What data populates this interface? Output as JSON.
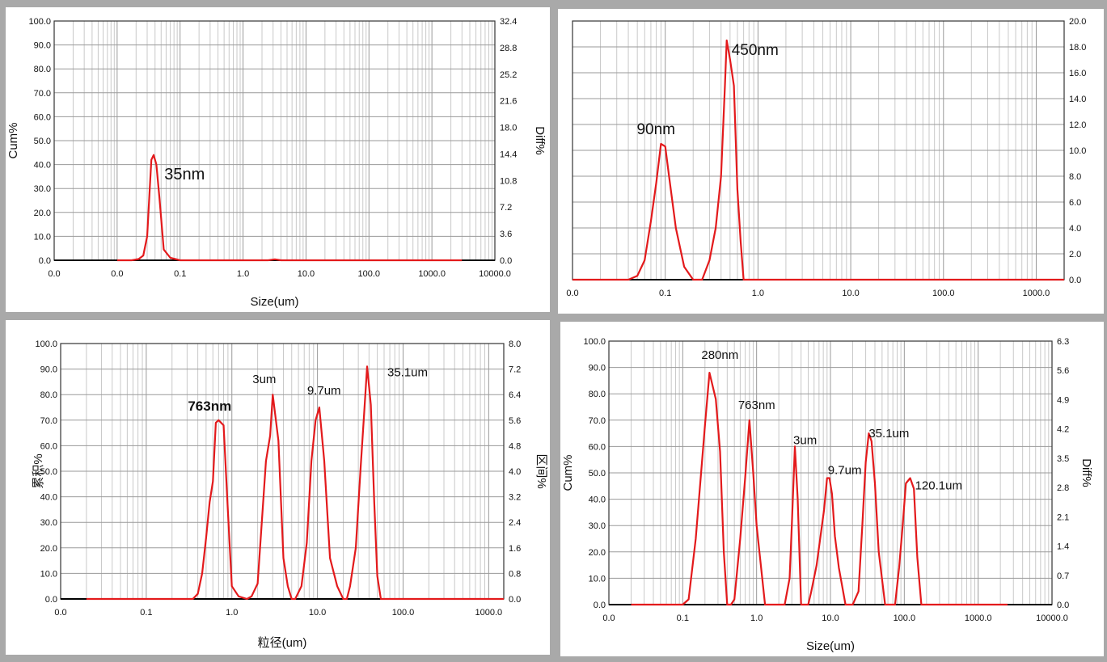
{
  "chart_data": [
    {
      "type": "line",
      "title": "",
      "xlabel": "Size(um)",
      "ylabel": "Cum%",
      "y2label": "Diff%",
      "x_scale": "log",
      "xlim": [
        0.001,
        10000
      ],
      "x_ticks": [
        0.001,
        0.01,
        0.1,
        1,
        10,
        100,
        1000,
        10000
      ],
      "x_tick_labels": [
        "0.0",
        "0.0",
        "0.1",
        "1.0",
        "10.0",
        "100.0",
        "1000.0",
        "10000.0"
      ],
      "ylim": [
        0,
        100
      ],
      "y_tick_labels": [
        "0.0",
        "10.0",
        "20.0",
        "30.0",
        "40.0",
        "50.0",
        "60.0",
        "70.0",
        "80.0",
        "90.0",
        "100.0"
      ],
      "y2lim": [
        0,
        36
      ],
      "y2_tick_labels": [
        "0.0",
        "3.6",
        "7.2",
        "10.8",
        "14.4",
        "18.0",
        "21.6",
        "25.2",
        "28.8",
        "32.4"
      ],
      "grid": true,
      "line_color": "#e31a1c",
      "series": [
        {
          "x": [
            0.01,
            0.017,
            0.022,
            0.026,
            0.03,
            0.033,
            0.035,
            0.038,
            0.042,
            0.047,
            0.055,
            0.07,
            0.1,
            1,
            2.5,
            3.2,
            4,
            10,
            100,
            1000,
            3000
          ],
          "y": [
            0,
            0,
            0.5,
            2,
            10,
            30,
            42,
            44,
            40,
            26,
            4.5,
            1,
            0,
            0,
            0,
            0.4,
            0,
            0,
            0,
            0,
            0
          ]
        }
      ],
      "annotations": [
        {
          "text": "35nm",
          "x": 0.035,
          "y": 44
        }
      ]
    },
    {
      "type": "line",
      "title": "",
      "xlabel": "",
      "ylabel": "",
      "y2label": "",
      "x_scale": "log",
      "xlim": [
        0.01,
        2000
      ],
      "x_ticks": [
        0.01,
        0.1,
        1,
        10,
        100,
        1000
      ],
      "x_tick_labels": [
        "0.0",
        "0.1",
        "1.0",
        "10.0",
        "100.0",
        "1000.0"
      ],
      "ylim": [
        0,
        20
      ],
      "y_tick_labels": [],
      "y2lim": [
        0,
        20
      ],
      "y2_tick_labels": [
        "0.0",
        "2.0",
        "4.0",
        "6.0",
        "8.0",
        "10.0",
        "12.0",
        "14.0",
        "16.0",
        "18.0",
        "20.0"
      ],
      "grid": true,
      "line_color": "#e31a1c",
      "series": [
        {
          "x": [
            0.01,
            0.04,
            0.05,
            0.06,
            0.07,
            0.08,
            0.09,
            0.1,
            0.11,
            0.13,
            0.16,
            0.2,
            0.25,
            0.3,
            0.35,
            0.4,
            0.44,
            0.46,
            0.5,
            0.55,
            0.6,
            0.65,
            0.7,
            10,
            2000
          ],
          "y": [
            0,
            0,
            0.3,
            1.5,
            4.5,
            7.5,
            10.5,
            10.3,
            8,
            4,
            1,
            0,
            0,
            1.5,
            4,
            8,
            15,
            18.5,
            17,
            15,
            7,
            3,
            0,
            0,
            0
          ]
        }
      ],
      "annotations": [
        {
          "text": "450nm",
          "x": 0.46,
          "y": 18.5
        },
        {
          "text": "90nm",
          "x": 0.09,
          "y": 10.5
        }
      ]
    },
    {
      "type": "line",
      "title": "",
      "xlabel": "粒径(um)",
      "ylabel": "累积%",
      "y2label": "区间%",
      "x_scale": "log",
      "xlim": [
        0.01,
        1500
      ],
      "x_ticks": [
        0.01,
        0.1,
        1,
        10,
        100,
        1000
      ],
      "x_tick_labels": [
        "0.0",
        "0.1",
        "1.0",
        "10.0",
        "100.0",
        "1000.0"
      ],
      "ylim": [
        0,
        100
      ],
      "y_tick_labels": [
        "0.0",
        "10.0",
        "20.0",
        "30.0",
        "40.0",
        "50.0",
        "60.0",
        "70.0",
        "80.0",
        "90.0",
        "100.0"
      ],
      "y2lim": [
        0,
        8
      ],
      "y2_tick_labels": [
        "0.0",
        "0.8",
        "1.6",
        "2.4",
        "3.2",
        "4.0",
        "4.8",
        "5.6",
        "6.4",
        "7.2",
        "8.0"
      ],
      "grid": true,
      "line_color": "#e31a1c",
      "series": [
        {
          "x": [
            0.02,
            0.35,
            0.4,
            0.45,
            0.5,
            0.55,
            0.6,
            0.65,
            0.7,
            0.8,
            0.9,
            1.0,
            1.2,
            1.5,
            1.7,
            2.0,
            2.5,
            2.8,
            3.0,
            3.5,
            4.0,
            4.5,
            5.0,
            5.5,
            6.5,
            7.5,
            8.5,
            9.5,
            10.5,
            12,
            14,
            17,
            20,
            22,
            24,
            28,
            32,
            35,
            38,
            42,
            46,
            50,
            55,
            60,
            1500
          ],
          "y": [
            0,
            0,
            2,
            10,
            24,
            38,
            46,
            69,
            70,
            68,
            34,
            5,
            1,
            0,
            1,
            6,
            54,
            64,
            80,
            62,
            16,
            5,
            0,
            0,
            5,
            22,
            54,
            70,
            75,
            54,
            16,
            5,
            0,
            0,
            5,
            20,
            52,
            72,
            91,
            76,
            38,
            9,
            0,
            0,
            0
          ]
        }
      ],
      "annotations": [
        {
          "text": "763nm",
          "x": 0.7,
          "y": 70
        },
        {
          "text": "3um",
          "x": 3.0,
          "y": 80
        },
        {
          "text": "9.7um",
          "x": 10.5,
          "y": 75
        },
        {
          "text": "35.1um",
          "x": 38,
          "y": 91
        }
      ]
    },
    {
      "type": "line",
      "title": "",
      "xlabel": "Size(um)",
      "ylabel": "Cum%",
      "y2label": "Diff%",
      "x_scale": "log",
      "xlim": [
        0.01,
        10000
      ],
      "x_ticks": [
        0.01,
        0.1,
        1,
        10,
        100,
        1000,
        10000
      ],
      "x_tick_labels": [
        "0.0",
        "0.1",
        "1.0",
        "10.0",
        "100.0",
        "1000.0",
        "10000.0"
      ],
      "ylim": [
        0,
        100
      ],
      "y_tick_labels": [
        "0.0",
        "10.0",
        "20.0",
        "30.0",
        "40.0",
        "50.0",
        "60.0",
        "70.0",
        "80.0",
        "90.0",
        "100.0"
      ],
      "y2lim": [
        0,
        7
      ],
      "y2_tick_labels": [
        "0.0",
        "0.7",
        "1.4",
        "2.1",
        "2.8",
        "3.5",
        "4.2",
        "4.9",
        "5.6",
        "6.3"
      ],
      "grid": true,
      "line_color": "#e31a1c",
      "series": [
        {
          "x": [
            0.02,
            0.1,
            0.12,
            0.15,
            0.2,
            0.23,
            0.28,
            0.32,
            0.36,
            0.4,
            0.45,
            0.5,
            0.6,
            0.7,
            0.8,
            0.9,
            1.0,
            1.3,
            1.7,
            2.4,
            2.8,
            3.0,
            3.3,
            3.6,
            4.0,
            5.0,
            5.5,
            6.5,
            7.5,
            8.2,
            9.0,
            9.7,
            10.5,
            11.5,
            13,
            16,
            18,
            20,
            24,
            27,
            30,
            33,
            36,
            40,
            45,
            55,
            65,
            75,
            85,
            95,
            105,
            120,
            135,
            150,
            170,
            200,
            2500
          ],
          "y": [
            0,
            0,
            2,
            25,
            68,
            88,
            78,
            58,
            20,
            0,
            0,
            2,
            25,
            48,
            70,
            50,
            30,
            0,
            0,
            0,
            10,
            30,
            60,
            40,
            0,
            0,
            5,
            15,
            28,
            36,
            48,
            48,
            42,
            26,
            14,
            0,
            0,
            0,
            5,
            30,
            54,
            65,
            62,
            46,
            20,
            0,
            0,
            0,
            14,
            30,
            46,
            48,
            44,
            18,
            0,
            0,
            0
          ]
        }
      ],
      "annotations": [
        {
          "text": "280nm",
          "x": 0.23,
          "y": 88
        },
        {
          "text": "763nm",
          "x": 0.8,
          "y": 70
        },
        {
          "text": "3um",
          "x": 3.3,
          "y": 60
        },
        {
          "text": "9.7um",
          "x": 9.7,
          "y": 48
        },
        {
          "text": "35.1um",
          "x": 33,
          "y": 65
        },
        {
          "text": "120.1um",
          "x": 120,
          "y": 48
        }
      ]
    }
  ]
}
